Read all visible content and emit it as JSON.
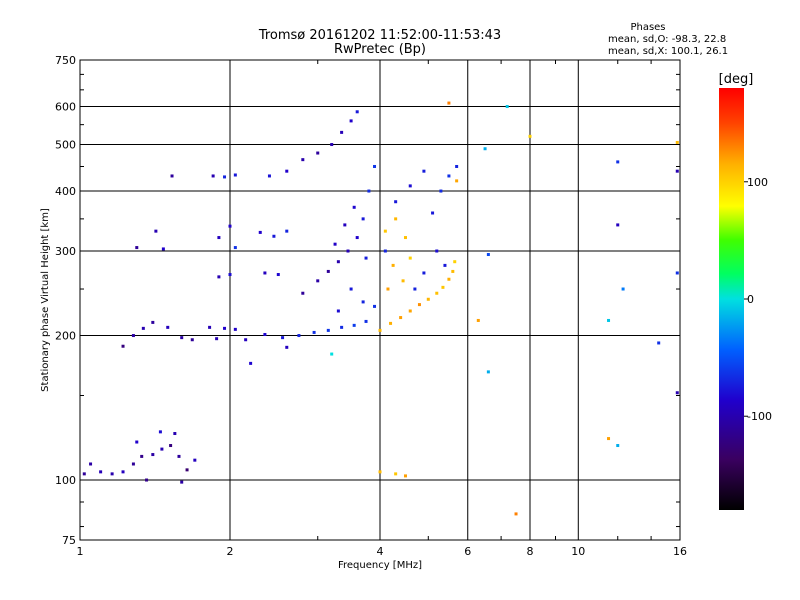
{
  "chart_data": {
    "type": "scatter",
    "title": "Tromsø 20161202 11:52:00-11:53:43",
    "subtitle": "RwPretec (Bp)",
    "xlabel": "Frequency [MHz]",
    "ylabel": "Stationary phase Virtual Height [km]",
    "x_scale": "log",
    "y_scale": "log",
    "xlim": [
      1,
      16
    ],
    "ylim": [
      75,
      750
    ],
    "x_ticks": [
      1,
      2,
      4,
      6,
      8,
      10,
      16
    ],
    "x_tick_labels": [
      "1",
      "2",
      "4",
      "6",
      "8",
      "10",
      "16"
    ],
    "y_ticks": [
      75,
      100,
      200,
      300,
      400,
      500,
      600,
      750
    ],
    "y_tick_labels": [
      "75",
      "100",
      "200",
      "300",
      "400",
      "500",
      "600",
      "750"
    ],
    "grid": true,
    "stats": {
      "title": "Phases",
      "line_o": "mean, sd,O: -98.3, 22.8",
      "line_x": "mean, sd,X: 100.1, 26.1"
    },
    "colorbar": {
      "label": "[deg]",
      "range": [
        -180,
        180
      ],
      "ticks": [
        100,
        0,
        -100
      ],
      "tick_labels": [
        "100",
        "0",
        "-100"
      ]
    },
    "series": [
      {
        "values": [
          {
            "f": 1.02,
            "h": 103,
            "p": -130
          },
          {
            "f": 1.05,
            "h": 108,
            "p": -125
          },
          {
            "f": 1.1,
            "h": 104,
            "p": -118
          },
          {
            "f": 1.16,
            "h": 103,
            "p": -122
          },
          {
            "f": 1.22,
            "h": 104,
            "p": -115
          },
          {
            "f": 1.28,
            "h": 108,
            "p": -130
          },
          {
            "f": 1.33,
            "h": 112,
            "p": -135
          },
          {
            "f": 1.4,
            "h": 113,
            "p": -125
          },
          {
            "f": 1.46,
            "h": 116,
            "p": -120
          },
          {
            "f": 1.52,
            "h": 118,
            "p": -140
          },
          {
            "f": 1.58,
            "h": 112,
            "p": -128
          },
          {
            "f": 1.64,
            "h": 105,
            "p": -145
          },
          {
            "f": 1.7,
            "h": 110,
            "p": -115
          },
          {
            "f": 1.3,
            "h": 120,
            "p": -110
          },
          {
            "f": 1.45,
            "h": 126,
            "p": -105
          },
          {
            "f": 1.55,
            "h": 125,
            "p": -120
          },
          {
            "f": 1.36,
            "h": 100,
            "p": -135
          },
          {
            "f": 1.6,
            "h": 99,
            "p": -125
          }
        ]
      },
      {
        "values": [
          {
            "f": 1.22,
            "h": 190,
            "p": -140
          },
          {
            "f": 1.28,
            "h": 200,
            "p": -125
          },
          {
            "f": 1.34,
            "h": 207,
            "p": -120
          },
          {
            "f": 1.4,
            "h": 213,
            "p": -128
          },
          {
            "f": 1.5,
            "h": 208,
            "p": -116
          },
          {
            "f": 1.6,
            "h": 198,
            "p": -125
          },
          {
            "f": 1.68,
            "h": 196,
            "p": -130
          },
          {
            "f": 1.82,
            "h": 208,
            "p": -118
          },
          {
            "f": 1.95,
            "h": 207,
            "p": -110
          },
          {
            "f": 2.05,
            "h": 206,
            "p": -112
          },
          {
            "f": 1.88,
            "h": 197,
            "p": -120
          },
          {
            "f": 2.15,
            "h": 196,
            "p": -115
          },
          {
            "f": 2.35,
            "h": 201,
            "p": -108
          },
          {
            "f": 2.55,
            "h": 198,
            "p": -100
          },
          {
            "f": 2.75,
            "h": 200,
            "p": -95
          },
          {
            "f": 2.95,
            "h": 203,
            "p": -90
          },
          {
            "f": 3.15,
            "h": 205,
            "p": -88
          },
          {
            "f": 3.35,
            "h": 208,
            "p": -92
          },
          {
            "f": 3.55,
            "h": 210,
            "p": -85
          },
          {
            "f": 3.75,
            "h": 214,
            "p": -90
          },
          {
            "f": 3.2,
            "h": 183,
            "p": -20
          },
          {
            "f": 2.6,
            "h": 189,
            "p": -115
          },
          {
            "f": 2.2,
            "h": 175,
            "p": -108
          }
        ]
      },
      {
        "values": [
          {
            "f": 1.3,
            "h": 305,
            "p": -130
          },
          {
            "f": 1.42,
            "h": 330,
            "p": -120
          },
          {
            "f": 1.47,
            "h": 303,
            "p": -110
          },
          {
            "f": 1.53,
            "h": 430,
            "p": -128
          },
          {
            "f": 1.85,
            "h": 430,
            "p": -120
          },
          {
            "f": 1.95,
            "h": 428,
            "p": -95
          },
          {
            "f": 2.05,
            "h": 432,
            "p": -100
          },
          {
            "f": 1.9,
            "h": 320,
            "p": -115
          },
          {
            "f": 2.0,
            "h": 338,
            "p": -110
          },
          {
            "f": 2.05,
            "h": 305,
            "p": -90
          },
          {
            "f": 1.9,
            "h": 265,
            "p": -120
          },
          {
            "f": 2.0,
            "h": 268,
            "p": -105
          },
          {
            "f": 2.3,
            "h": 328,
            "p": -110
          },
          {
            "f": 2.45,
            "h": 322,
            "p": -100
          },
          {
            "f": 2.6,
            "h": 330,
            "p": -95
          },
          {
            "f": 2.35,
            "h": 270,
            "p": -115
          },
          {
            "f": 2.5,
            "h": 268,
            "p": -108
          },
          {
            "f": 2.4,
            "h": 430,
            "p": -102
          },
          {
            "f": 2.6,
            "h": 440,
            "p": -110
          },
          {
            "f": 2.8,
            "h": 465,
            "p": -122
          },
          {
            "f": 3.0,
            "h": 480,
            "p": -128
          },
          {
            "f": 3.2,
            "h": 500,
            "p": -120
          },
          {
            "f": 3.35,
            "h": 530,
            "p": -118
          },
          {
            "f": 3.5,
            "h": 560,
            "p": -110
          },
          {
            "f": 3.6,
            "h": 585,
            "p": -100
          }
        ]
      },
      {
        "values": [
          {
            "f": 2.8,
            "h": 245,
            "p": -130
          },
          {
            "f": 3.0,
            "h": 260,
            "p": -125
          },
          {
            "f": 3.15,
            "h": 272,
            "p": -130
          },
          {
            "f": 3.3,
            "h": 285,
            "p": -122
          },
          {
            "f": 3.45,
            "h": 300,
            "p": -118
          },
          {
            "f": 3.6,
            "h": 320,
            "p": -110
          },
          {
            "f": 3.7,
            "h": 350,
            "p": -100
          },
          {
            "f": 3.8,
            "h": 400,
            "p": -92
          },
          {
            "f": 3.9,
            "h": 450,
            "p": -88
          },
          {
            "f": 3.4,
            "h": 340,
            "p": -115
          },
          {
            "f": 3.55,
            "h": 370,
            "p": -108
          },
          {
            "f": 3.5,
            "h": 250,
            "p": -100
          },
          {
            "f": 3.7,
            "h": 235,
            "p": -95
          },
          {
            "f": 3.9,
            "h": 230,
            "p": -90
          },
          {
            "f": 3.3,
            "h": 225,
            "p": -105
          },
          {
            "f": 3.75,
            "h": 290,
            "p": -98
          },
          {
            "f": 3.25,
            "h": 310,
            "p": -112
          }
        ]
      },
      {
        "values": [
          {
            "f": 4.0,
            "h": 205,
            "p": 110
          },
          {
            "f": 4.2,
            "h": 212,
            "p": 115
          },
          {
            "f": 4.4,
            "h": 218,
            "p": 120
          },
          {
            "f": 4.6,
            "h": 225,
            "p": 118
          },
          {
            "f": 4.8,
            "h": 232,
            "p": 125
          },
          {
            "f": 5.0,
            "h": 238,
            "p": 112
          },
          {
            "f": 5.2,
            "h": 245,
            "p": 108
          },
          {
            "f": 5.35,
            "h": 252,
            "p": 105
          },
          {
            "f": 5.5,
            "h": 262,
            "p": 115
          },
          {
            "f": 5.6,
            "h": 272,
            "p": 110
          },
          {
            "f": 5.65,
            "h": 285,
            "p": 100
          },
          {
            "f": 4.1,
            "h": 330,
            "p": 105
          },
          {
            "f": 4.3,
            "h": 350,
            "p": 112
          },
          {
            "f": 4.5,
            "h": 320,
            "p": 108
          },
          {
            "f": 4.25,
            "h": 280,
            "p": 115
          },
          {
            "f": 4.45,
            "h": 260,
            "p": 110
          },
          {
            "f": 4.15,
            "h": 250,
            "p": 120
          },
          {
            "f": 4.6,
            "h": 290,
            "p": 100
          },
          {
            "f": 4.0,
            "h": 104,
            "p": 110
          },
          {
            "f": 4.3,
            "h": 103,
            "p": 105
          },
          {
            "f": 4.5,
            "h": 102,
            "p": 120
          },
          {
            "f": 5.5,
            "h": 610,
            "p": 130
          },
          {
            "f": 5.7,
            "h": 420,
            "p": 118
          }
        ]
      },
      {
        "values": [
          {
            "f": 4.1,
            "h": 300,
            "p": -95
          },
          {
            "f": 4.3,
            "h": 380,
            "p": -100
          },
          {
            "f": 4.6,
            "h": 410,
            "p": -105
          },
          {
            "f": 4.9,
            "h": 440,
            "p": -98
          },
          {
            "f": 5.1,
            "h": 360,
            "p": -100
          },
          {
            "f": 5.3,
            "h": 400,
            "p": -92
          },
          {
            "f": 5.5,
            "h": 430,
            "p": -90
          },
          {
            "f": 5.7,
            "h": 450,
            "p": -95
          },
          {
            "f": 5.2,
            "h": 300,
            "p": -105
          },
          {
            "f": 5.4,
            "h": 280,
            "p": -100
          },
          {
            "f": 4.9,
            "h": 270,
            "p": -98
          },
          {
            "f": 4.7,
            "h": 250,
            "p": -96
          }
        ]
      },
      {
        "values": [
          {
            "f": 6.5,
            "h": 490,
            "p": -40
          },
          {
            "f": 6.6,
            "h": 295,
            "p": -80
          },
          {
            "f": 7.2,
            "h": 600,
            "p": -30
          },
          {
            "f": 6.6,
            "h": 168,
            "p": -40
          },
          {
            "f": 6.3,
            "h": 215,
            "p": 120
          },
          {
            "f": 7.5,
            "h": 85,
            "p": 130
          },
          {
            "f": 8.0,
            "h": 520,
            "p": 100
          },
          {
            "f": 12.0,
            "h": 460,
            "p": -90
          },
          {
            "f": 12.0,
            "h": 340,
            "p": -115
          },
          {
            "f": 12.3,
            "h": 250,
            "p": -60
          },
          {
            "f": 11.5,
            "h": 215,
            "p": -30
          },
          {
            "f": 12.0,
            "h": 118,
            "p": -40
          },
          {
            "f": 11.5,
            "h": 122,
            "p": 120
          },
          {
            "f": 14.5,
            "h": 193,
            "p": -90
          },
          {
            "f": 15.8,
            "h": 505,
            "p": 110
          },
          {
            "f": 15.8,
            "h": 440,
            "p": -120
          },
          {
            "f": 15.8,
            "h": 270,
            "p": -90
          },
          {
            "f": 15.8,
            "h": 152,
            "p": -120
          }
        ]
      }
    ]
  }
}
